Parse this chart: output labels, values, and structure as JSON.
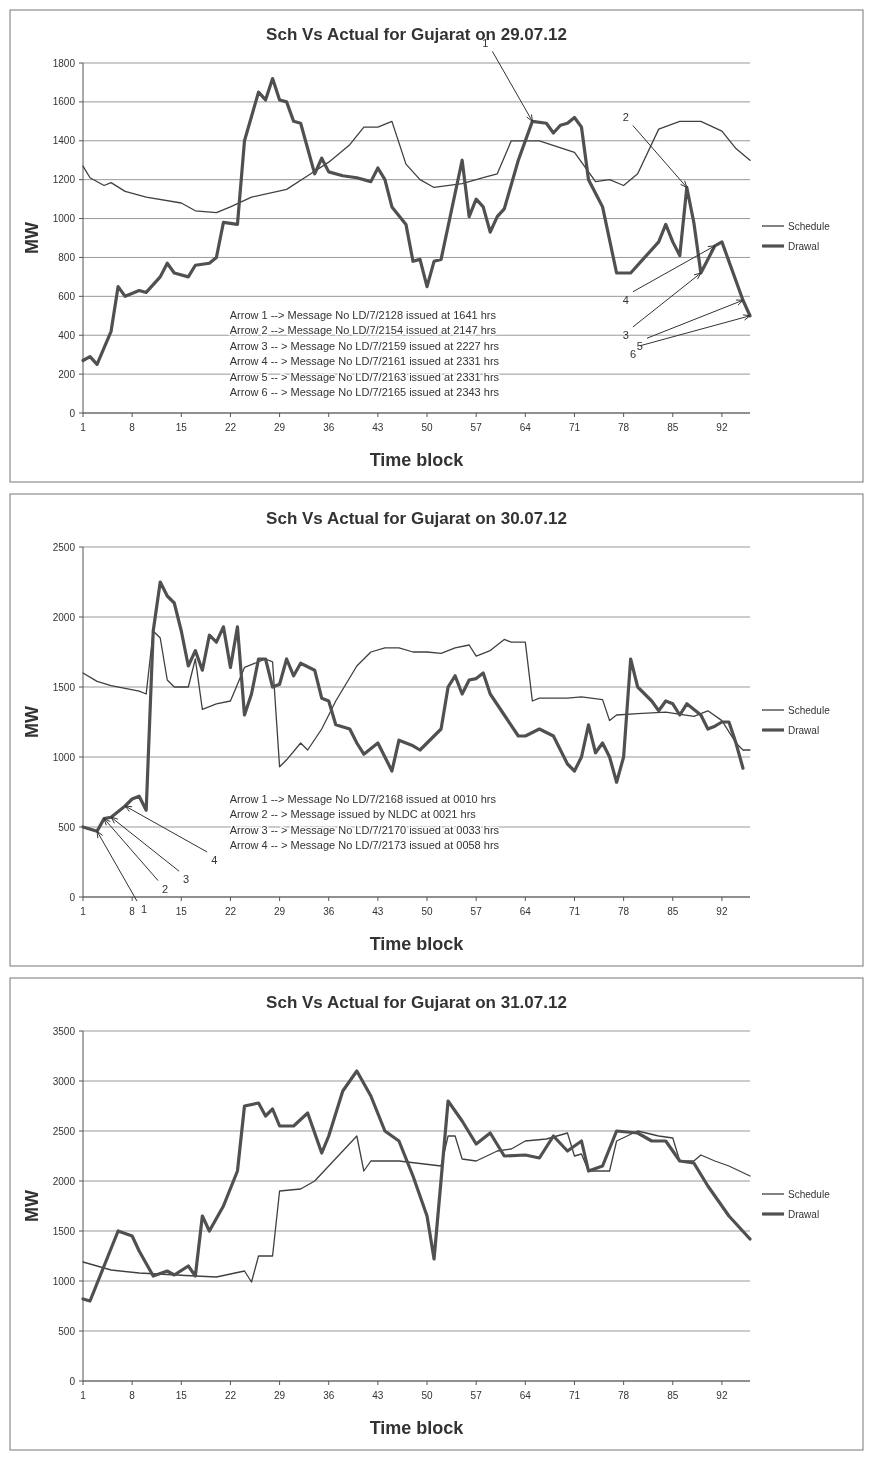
{
  "chart_data": [
    {
      "type": "line",
      "title": "Sch Vs Actual for Gujarat on 29.07.12",
      "xlabel": "Time block",
      "ylabel": "MW",
      "xlim": [
        1,
        96
      ],
      "xticks": [
        1,
        8,
        15,
        22,
        29,
        36,
        43,
        50,
        57,
        64,
        71,
        78,
        85,
        92
      ],
      "ylim": [
        0,
        1800
      ],
      "yticks": [
        0,
        200,
        400,
        600,
        800,
        1000,
        1200,
        1400,
        1600,
        1800
      ],
      "grid": "y",
      "legend": "right",
      "marker": "none",
      "series": [
        {
          "name": "Schedule",
          "color": "#404040",
          "x": [
            1,
            2,
            4,
            5,
            7,
            10,
            15,
            17,
            20,
            22,
            25,
            30,
            33,
            36,
            39,
            41,
            43,
            45,
            47,
            49,
            51,
            55,
            58,
            60,
            62,
            66,
            71,
            74,
            76,
            78,
            80,
            83,
            86,
            89,
            92,
            94,
            96
          ],
          "values": [
            1270,
            1210,
            1170,
            1185,
            1140,
            1110,
            1080,
            1040,
            1030,
            1060,
            1110,
            1150,
            1220,
            1290,
            1380,
            1470,
            1470,
            1500,
            1280,
            1200,
            1160,
            1180,
            1210,
            1230,
            1400,
            1400,
            1340,
            1190,
            1200,
            1170,
            1230,
            1460,
            1500,
            1500,
            1450,
            1360,
            1300
          ]
        },
        {
          "name": "Drawal",
          "color": "#505050",
          "x": [
            1,
            2,
            3,
            5,
            6,
            7,
            9,
            10,
            12,
            13,
            14,
            16,
            17,
            19,
            20,
            21,
            23,
            24,
            26,
            27,
            28,
            29,
            30,
            31,
            32,
            34,
            35,
            36,
            38,
            40,
            42,
            43,
            44,
            45,
            47,
            48,
            49,
            50,
            51,
            52,
            55,
            56,
            57,
            58,
            59,
            60,
            61,
            63,
            65,
            67,
            68,
            69,
            70,
            71,
            72,
            73,
            74,
            75,
            77,
            79,
            81,
            83,
            84,
            85,
            86,
            87,
            88,
            89,
            91,
            92,
            93,
            95,
            96
          ],
          "values": [
            270,
            290,
            250,
            420,
            650,
            600,
            630,
            620,
            700,
            770,
            720,
            700,
            760,
            770,
            800,
            980,
            970,
            1400,
            1650,
            1610,
            1720,
            1610,
            1600,
            1500,
            1490,
            1230,
            1310,
            1240,
            1220,
            1210,
            1190,
            1260,
            1200,
            1060,
            970,
            780,
            790,
            650,
            780,
            790,
            1300,
            1010,
            1100,
            1060,
            930,
            1010,
            1050,
            1300,
            1500,
            1490,
            1440,
            1480,
            1490,
            1520,
            1470,
            1200,
            1130,
            1060,
            720,
            720,
            800,
            880,
            970,
            880,
            810,
            1160,
            980,
            720,
            860,
            880,
            780,
            580,
            500
          ]
        }
      ],
      "annotations": [
        "Arrow 1 --> Message No LD/7/2128 issued at 1641 hrs",
        "Arrow 2 --> Message No LD/7/2154 issued at 2147 hrs",
        "Arrow 3 -- > Message No LD/7/2159 issued at 2227 hrs",
        "Arrow 4 -- > Message No LD/7/2161 issued at 2331 hrs",
        "Arrow 5 -- > Message No LD/7/2163 issued at 2331 hrs",
        "Arrow 6 -- > Message No LD/7/2165 issued at 2343 hrs",
        {
          "text": "1",
          "x": 65,
          "y": 1500
        },
        {
          "text": "2",
          "x": 87,
          "y": 1160
        },
        {
          "text": "3",
          "x": 89,
          "y": 720
        },
        {
          "text": "4",
          "x": 91,
          "y": 860
        },
        {
          "text": "5",
          "x": 95,
          "y": 580
        },
        {
          "text": "6",
          "x": 96,
          "y": 500
        }
      ]
    },
    {
      "type": "line",
      "title": "Sch Vs Actual for Gujarat on 30.07.12",
      "xlabel": "Time block",
      "ylabel": "MW",
      "xlim": [
        1,
        96
      ],
      "xticks": [
        1,
        8,
        15,
        22,
        29,
        36,
        43,
        50,
        57,
        64,
        71,
        78,
        85,
        92
      ],
      "ylim": [
        0,
        2500
      ],
      "yticks": [
        0,
        500,
        1000,
        1500,
        2000,
        2500
      ],
      "grid": "y",
      "legend": "right",
      "marker": "none",
      "series": [
        {
          "name": "Schedule",
          "color": "#404040",
          "x": [
            1,
            3,
            5,
            9,
            10,
            11,
            12,
            13,
            14,
            16,
            17,
            18,
            20,
            22,
            24,
            27,
            28,
            29,
            30,
            32,
            33,
            35,
            37,
            40,
            42,
            44,
            46,
            48,
            50,
            52,
            54,
            56,
            57,
            59,
            61,
            62,
            64,
            65,
            66,
            70,
            72,
            75,
            76,
            77,
            80,
            84,
            88,
            90,
            92,
            94,
            95,
            96
          ],
          "values": [
            1600,
            1540,
            1510,
            1470,
            1450,
            1900,
            1850,
            1550,
            1500,
            1500,
            1700,
            1340,
            1380,
            1400,
            1640,
            1700,
            1680,
            930,
            980,
            1100,
            1050,
            1200,
            1400,
            1650,
            1750,
            1780,
            1780,
            1750,
            1750,
            1740,
            1780,
            1800,
            1720,
            1760,
            1840,
            1820,
            1820,
            1400,
            1420,
            1420,
            1430,
            1410,
            1260,
            1300,
            1310,
            1320,
            1290,
            1330,
            1260,
            1100,
            1050,
            1050
          ]
        },
        {
          "name": "Drawal",
          "color": "#505050",
          "x": [
            1,
            3,
            4,
            5,
            7,
            8,
            9,
            10,
            11,
            12,
            13,
            14,
            15,
            16,
            17,
            18,
            19,
            20,
            21,
            22,
            23,
            24,
            25,
            26,
            27,
            28,
            29,
            30,
            31,
            32,
            34,
            35,
            36,
            37,
            39,
            40,
            41,
            43,
            44,
            45,
            46,
            48,
            49,
            51,
            52,
            53,
            54,
            55,
            56,
            57,
            58,
            59,
            61,
            63,
            64,
            66,
            68,
            70,
            71,
            72,
            73,
            74,
            75,
            76,
            77,
            78,
            79,
            80,
            82,
            83,
            84,
            85,
            86,
            87,
            89,
            90,
            91,
            92,
            93,
            94,
            95
          ],
          "values": [
            500,
            470,
            560,
            570,
            650,
            700,
            720,
            620,
            1900,
            2250,
            2150,
            2100,
            1900,
            1650,
            1760,
            1620,
            1870,
            1820,
            1930,
            1640,
            1930,
            1300,
            1450,
            1700,
            1700,
            1500,
            1520,
            1700,
            1580,
            1670,
            1620,
            1420,
            1400,
            1230,
            1200,
            1100,
            1020,
            1100,
            1000,
            900,
            1120,
            1080,
            1050,
            1150,
            1200,
            1500,
            1580,
            1450,
            1550,
            1560,
            1600,
            1450,
            1300,
            1150,
            1150,
            1200,
            1150,
            950,
            900,
            1000,
            1230,
            1030,
            1100,
            1000,
            820,
            1000,
            1700,
            1500,
            1400,
            1330,
            1400,
            1380,
            1300,
            1380,
            1300,
            1200,
            1220,
            1250,
            1250,
            1100,
            920
          ]
        }
      ],
      "annotations": [
        "Arrow 1 --> Message No LD/7/2168 issued at 0010 hrs",
        "Arrow 2 -- > Message issued by NLDC at 0021 hrs",
        "Arrow 3 -- > Message No LD/7/2170 issued at 0033 hrs",
        "Arrow 4 -- > Message No LD/7/2173 issued at 0058 hrs",
        {
          "text": "1",
          "x": 3,
          "y": 470
        },
        {
          "text": "2",
          "x": 4,
          "y": 560
        },
        {
          "text": "3",
          "x": 5,
          "y": 570
        },
        {
          "text": "4",
          "x": 7,
          "y": 650
        }
      ]
    },
    {
      "type": "line",
      "title": "Sch Vs Actual for Gujarat on 31.07.12",
      "xlabel": "Time block",
      "ylabel": "MW",
      "xlim": [
        1,
        96
      ],
      "xticks": [
        1,
        8,
        15,
        22,
        29,
        36,
        43,
        50,
        57,
        64,
        71,
        78,
        85,
        92
      ],
      "ylim": [
        0,
        3500
      ],
      "yticks": [
        0,
        500,
        1000,
        1500,
        2000,
        2500,
        3000,
        3500
      ],
      "grid": "y",
      "legend": "right",
      "marker": "none",
      "series": [
        {
          "name": "Schedule",
          "color": "#404040",
          "x": [
            1,
            5,
            9,
            17,
            20,
            24,
            25,
            26,
            28,
            29,
            32,
            34,
            36,
            40,
            41,
            42,
            46,
            52,
            53,
            54,
            55,
            57,
            60,
            62,
            64,
            67,
            70,
            71,
            72,
            73,
            76,
            77,
            80,
            83,
            85,
            86,
            88,
            89,
            91,
            93,
            96
          ],
          "values": [
            1190,
            1110,
            1080,
            1050,
            1040,
            1100,
            990,
            1250,
            1250,
            1900,
            1920,
            2000,
            2150,
            2450,
            2100,
            2200,
            2200,
            2150,
            2450,
            2450,
            2220,
            2200,
            2300,
            2320,
            2400,
            2420,
            2480,
            2250,
            2270,
            2100,
            2100,
            2400,
            2500,
            2450,
            2430,
            2200,
            2200,
            2260,
            2200,
            2150,
            2050
          ]
        },
        {
          "name": "Drawal",
          "color": "#505050",
          "x": [
            1,
            2,
            4,
            6,
            8,
            9,
            11,
            13,
            14,
            16,
            17,
            18,
            19,
            21,
            23,
            24,
            26,
            27,
            28,
            29,
            31,
            33,
            35,
            36,
            38,
            40,
            42,
            44,
            46,
            48,
            50,
            51,
            53,
            55,
            57,
            59,
            61,
            64,
            66,
            68,
            70,
            72,
            73,
            75,
            77,
            80,
            82,
            84,
            86,
            88,
            90,
            93,
            96
          ],
          "values": [
            820,
            800,
            1150,
            1500,
            1450,
            1300,
            1050,
            1100,
            1060,
            1150,
            1050,
            1650,
            1500,
            1750,
            2100,
            2750,
            2780,
            2650,
            2720,
            2550,
            2550,
            2680,
            2280,
            2450,
            2900,
            3100,
            2850,
            2500,
            2400,
            2050,
            1650,
            1220,
            2800,
            2600,
            2370,
            2480,
            2250,
            2260,
            2230,
            2450,
            2300,
            2400,
            2100,
            2150,
            2500,
            2480,
            2400,
            2400,
            2200,
            2180,
            1950,
            1650,
            1420
          ]
        }
      ]
    }
  ]
}
